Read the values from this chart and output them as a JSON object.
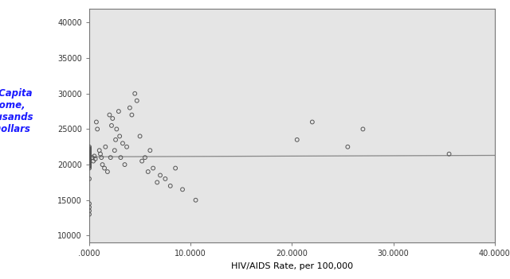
{
  "xlabel": "HIV/AIDS Rate, per 100,000",
  "ylabel": "Per Capita\nIncome,\nThousands\nof Dollars",
  "xlim": [
    0,
    40
  ],
  "ylim": [
    9000,
    42000
  ],
  "xticks": [
    0,
    10,
    20,
    30,
    40
  ],
  "xtick_labels": [
    ".0000",
    "10.0000",
    "20.0000",
    "30.0000",
    "40.0000"
  ],
  "yticks": [
    10000,
    15000,
    20000,
    25000,
    30000,
    35000,
    40000
  ],
  "ytick_labels": [
    "10000",
    "15000",
    "20000",
    "25000",
    "30000",
    "35000",
    "40000"
  ],
  "regression_line_y1": 21100,
  "regression_line_y2": 21300,
  "background_color": "#e5e5e5",
  "scatter_edgecolor": "#555555",
  "scatter_size": 12,
  "scatter_linewidth": 0.7,
  "ylabel_color": "#1a1aff",
  "x_data": [
    0.0,
    0.0,
    0.0,
    0.0,
    0.0,
    0.0,
    0.0,
    0.0,
    0.0,
    0.0,
    0.0,
    0.0,
    0.0,
    0.0,
    0.0,
    0.0,
    0.0,
    0.0,
    0.0,
    0.0,
    0.0,
    0.0,
    0.0,
    0.0,
    0.0,
    0.0,
    0.0,
    0.0,
    0.0,
    0.0,
    0.0,
    0.0,
    0.0,
    0.0,
    0.0,
    0.0,
    0.0,
    0.0,
    0.0,
    0.0,
    0.0,
    0.0,
    0.0,
    0.0,
    0.0,
    0.0,
    0.3,
    0.4,
    0.5,
    0.6,
    0.7,
    0.8,
    1.0,
    1.1,
    1.2,
    1.3,
    1.5,
    1.6,
    1.8,
    2.0,
    2.1,
    2.2,
    2.3,
    2.5,
    2.6,
    2.7,
    2.9,
    3.0,
    3.1,
    3.3,
    3.5,
    3.7,
    4.0,
    4.2,
    4.5,
    4.7,
    5.0,
    5.2,
    5.5,
    5.8,
    6.0,
    6.3,
    6.7,
    7.0,
    7.5,
    8.0,
    8.5,
    9.2,
    10.5,
    20.5,
    22.0,
    25.5,
    27.0,
    35.5
  ],
  "y_data": [
    21100,
    21200,
    20900,
    20800,
    21300,
    20700,
    21500,
    20600,
    21400,
    20500,
    21600,
    20400,
    21700,
    20300,
    21800,
    20200,
    22000,
    20000,
    22200,
    19800,
    22500,
    21050,
    20950,
    21150,
    20850,
    21250,
    21350,
    20650,
    21450,
    20750,
    21550,
    20450,
    21650,
    20350,
    21750,
    20250,
    22100,
    19900,
    22300,
    19700,
    13000,
    13500,
    14000,
    14500,
    19500,
    18000,
    21000,
    20500,
    21200,
    20800,
    26000,
    25000,
    22000,
    21500,
    21000,
    20000,
    19500,
    22500,
    19000,
    27000,
    21000,
    25500,
    26500,
    22000,
    23500,
    25000,
    27500,
    24000,
    21000,
    23000,
    20000,
    22500,
    28000,
    27000,
    30000,
    29000,
    24000,
    20500,
    21000,
    19000,
    22000,
    19500,
    17500,
    18500,
    18000,
    17000,
    19500,
    16500,
    15000,
    23500,
    26000,
    22500,
    25000,
    21500
  ]
}
